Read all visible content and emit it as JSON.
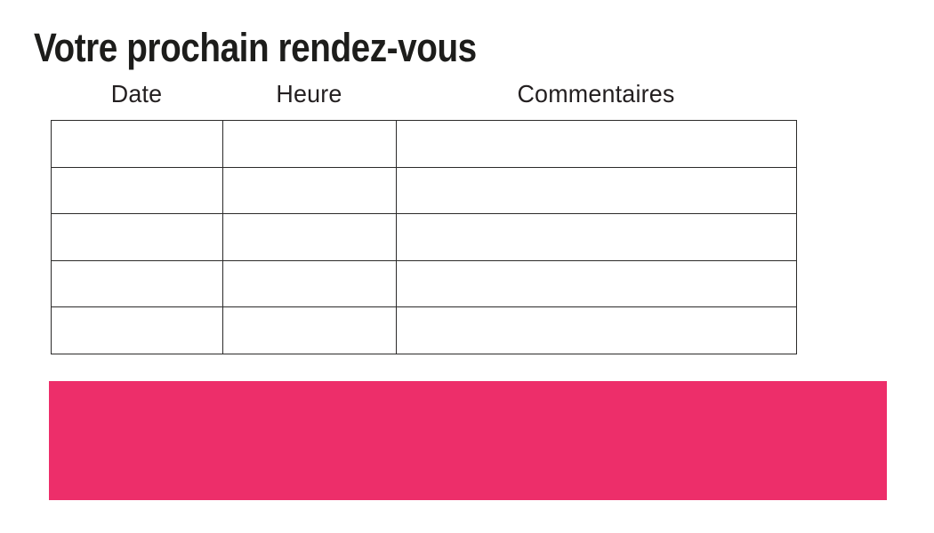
{
  "page": {
    "title": "Votre prochain rendez-vous",
    "background": "#ffffff"
  },
  "appointments_table": {
    "columns": [
      "Date",
      "Heure",
      "Commentaires"
    ],
    "rows": [
      [
        "",
        "",
        ""
      ],
      [
        "",
        "",
        ""
      ],
      [
        "",
        "",
        ""
      ],
      [
        "",
        "",
        ""
      ],
      [
        "",
        "",
        ""
      ]
    ]
  },
  "banner": {
    "text": "",
    "color": "#ed2e6a"
  },
  "colors": {
    "text": "#231f20",
    "title": "#1d1d1b",
    "table_border": "#2b2a29",
    "banner_pink": "#ed2e6a"
  }
}
